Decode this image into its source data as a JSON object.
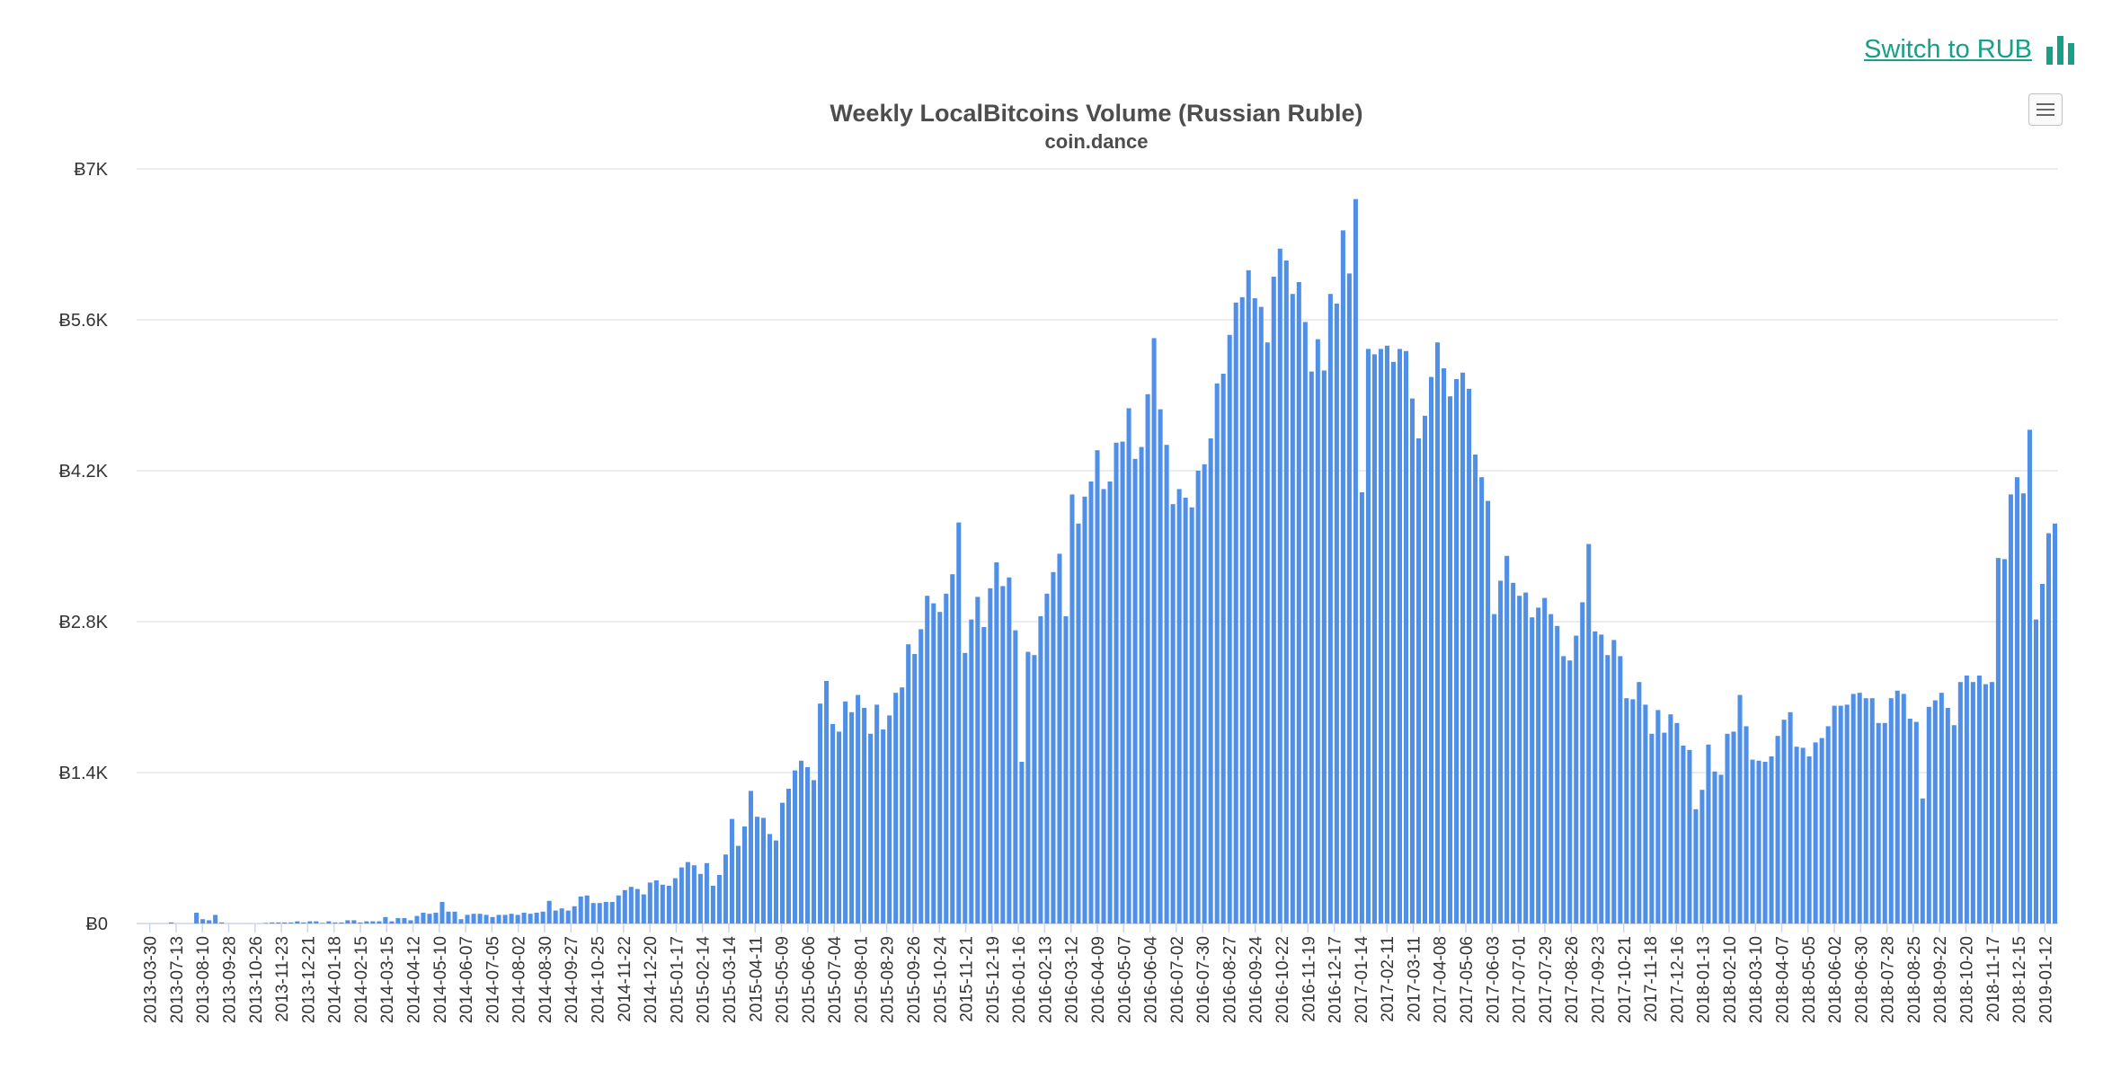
{
  "header": {
    "switch_label": "Switch to RUB",
    "switch_icon": "bar-chart-icon",
    "menu_icon": "hamburger-menu-icon"
  },
  "colors": {
    "bar": "#4f8fe8",
    "link": "#16a085",
    "grid": "#e6e6e6",
    "title": "#4d4d4d",
    "axis_text": "#333333"
  },
  "chart_data": {
    "type": "bar",
    "title": "Weekly LocalBitcoins Volume (Russian Ruble)",
    "subtitle": "coin.dance",
    "ylabel": "",
    "xlabel": "",
    "ylim": [
      0,
      7000
    ],
    "yticks": [
      "Ƀ0",
      "Ƀ1.4K",
      "Ƀ2.8K",
      "Ƀ4.2K",
      "Ƀ5.6K",
      "Ƀ7K"
    ],
    "ytick_values": [
      0,
      1400,
      2800,
      4200,
      5600,
      7000
    ],
    "grid": true,
    "legend": "none",
    "series_count": 305,
    "xtick_labels": [
      "2013-03-30",
      "2013-07-13",
      "2013-08-10",
      "2013-09-28",
      "2013-10-26",
      "2013-11-23",
      "2013-12-21",
      "2014-01-18",
      "2014-02-15",
      "2014-03-15",
      "2014-04-12",
      "2014-05-10",
      "2014-06-07",
      "2014-07-05",
      "2014-08-02",
      "2014-08-30",
      "2014-09-27",
      "2014-10-25",
      "2014-11-22",
      "2014-12-20",
      "2015-01-17",
      "2015-02-14",
      "2015-03-14",
      "2015-04-11",
      "2015-05-09",
      "2015-06-06",
      "2015-07-04",
      "2015-08-01",
      "2015-08-29",
      "2015-09-26",
      "2015-10-24",
      "2015-11-21",
      "2015-12-19",
      "2016-01-16",
      "2016-02-13",
      "2016-03-12",
      "2016-04-09",
      "2016-05-07",
      "2016-06-04",
      "2016-07-02",
      "2016-07-30",
      "2016-08-27",
      "2016-09-24",
      "2016-10-22",
      "2016-11-19",
      "2016-12-17",
      "2017-01-14",
      "2017-02-11",
      "2017-03-11",
      "2017-04-08",
      "2017-05-06",
      "2017-06-03",
      "2017-07-01",
      "2017-07-29",
      "2017-08-26",
      "2017-09-23",
      "2017-10-21",
      "2017-11-18",
      "2017-12-16",
      "2018-01-13",
      "2018-02-10",
      "2018-03-10",
      "2018-04-07",
      "2018-05-05",
      "2018-06-02",
      "2018-06-30",
      "2018-07-28",
      "2018-08-25",
      "2018-09-22",
      "2018-10-20",
      "2018-11-17",
      "2018-12-15",
      "2019-01-12"
    ],
    "values": [
      0,
      0,
      0,
      0,
      0,
      10,
      0,
      0,
      0,
      100,
      40,
      30,
      80,
      10,
      0,
      0,
      0,
      0,
      0,
      0,
      5,
      10,
      10,
      10,
      10,
      20,
      10,
      20,
      20,
      5,
      20,
      10,
      10,
      30,
      30,
      10,
      20,
      20,
      20,
      60,
      20,
      50,
      50,
      30,
      70,
      100,
      90,
      100,
      200,
      110,
      110,
      40,
      80,
      90,
      90,
      80,
      60,
      80,
      80,
      90,
      80,
      100,
      90,
      100,
      110,
      210,
      120,
      140,
      120,
      160,
      250,
      260,
      190,
      190,
      200,
      200,
      260,
      310,
      340,
      320,
      270,
      380,
      400,
      360,
      350,
      420,
      520,
      570,
      540,
      460,
      560,
      350,
      450,
      640,
      970,
      720,
      900,
      1230,
      990,
      980,
      830,
      770,
      1120,
      1250,
      1420,
      1510,
      1450,
      1330,
      2040,
      2250,
      1850,
      1780,
      2060,
      1960,
      2120,
      2000,
      1760,
      2030,
      1800,
      1930,
      2140,
      2190,
      2590,
      2500,
      2730,
      3040,
      2970,
      2890,
      3060,
      3240,
      3720,
      2510,
      2820,
      3030,
      2750,
      3110,
      3350,
      3130,
      3210,
      2720,
      1500,
      2520,
      2490,
      2850,
      3060,
      3260,
      3430,
      2850,
      3980,
      3710,
      3960,
      4100,
      4390,
      4030,
      4100,
      4460,
      4470,
      4780,
      4310,
      4420,
      4910,
      5430,
      4770,
      4440,
      3890,
      4030,
      3950,
      3860,
      4200,
      4260,
      4500,
      5010,
      5100,
      5460,
      5760,
      5810,
      6060,
      5800,
      5720,
      5390,
      6000,
      6260,
      6150,
      5840,
      5950,
      5580,
      5120,
      5420,
      5130,
      5840,
      5750,
      6430,
      6030,
      6720,
      4000,
      5330,
      5280,
      5330,
      5360,
      5210,
      5330,
      5310,
      4870,
      4500,
      4710,
      5070,
      5390,
      5150,
      4890,
      5050,
      5110,
      4960,
      4350,
      4140,
      3920,
      2870,
      3180,
      3410,
      3160,
      3040,
      3070,
      2840,
      2930,
      3020,
      2870,
      2760,
      2480,
      2440,
      2670,
      2980,
      3520,
      2710,
      2680,
      2490,
      2630,
      2480,
      2090,
      2080,
      2240,
      2030,
      1760,
      1980,
      1770,
      1940,
      1860,
      1650,
      1610,
      1060,
      1240,
      1660,
      1410,
      1380,
      1760,
      1780,
      2120,
      1830,
      1520,
      1510,
      1500,
      1550,
      1740,
      1890,
      1960,
      1640,
      1630,
      1550,
      1680,
      1720,
      1830,
      2020,
      2020,
      2030,
      2130,
      2140,
      2090,
      2090,
      1860,
      1860,
      2090,
      2160,
      2130,
      1900,
      1870,
      1160,
      2010,
      2070,
      2140,
      2000,
      1840,
      2240,
      2300,
      2240,
      2300,
      2220,
      2240,
      3390,
      3380,
      3980,
      4140,
      3990,
      4580,
      2820,
      3150,
      3620,
      3710
    ]
  }
}
